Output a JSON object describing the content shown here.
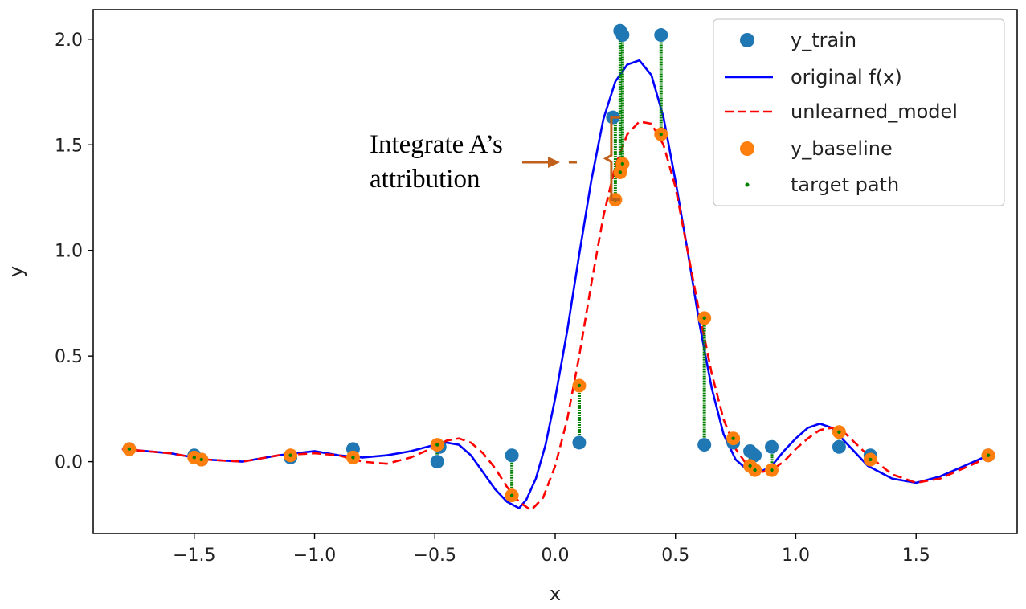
{
  "chart_data": {
    "type": "scatter",
    "title": "",
    "xlabel": "x",
    "ylabel": "y",
    "xlim": [
      -1.92,
      1.92
    ],
    "ylim": [
      -0.34,
      2.14
    ],
    "xticks": [
      -1.5,
      -1.0,
      -0.5,
      0.0,
      0.5,
      1.0,
      1.5
    ],
    "xtick_labels": [
      "−1.5",
      "−1.0",
      "−0.5",
      "0.0",
      "0.5",
      "1.0",
      "1.5"
    ],
    "yticks": [
      0.0,
      0.5,
      1.0,
      1.5,
      2.0
    ],
    "ytick_labels": [
      "0.0",
      "0.5",
      "1.0",
      "1.5",
      "2.0"
    ],
    "grid": false,
    "legend_position": "top-right",
    "colors": {
      "y_train": "#1f77b4",
      "original": "#0000ff",
      "unlearned": "#ff0000",
      "y_baseline": "#ff7f0e",
      "target_path": "#008000",
      "annotation": "#c0601a"
    },
    "legend": [
      {
        "label": "y_train",
        "marker": "circle",
        "color": "#1f77b4"
      },
      {
        "label": "original f(x)",
        "marker": "solid-line",
        "color": "#0000ff"
      },
      {
        "label": "unlearned_model",
        "marker": "dashed-line",
        "color": "#ff0000"
      },
      {
        "label": "y_baseline",
        "marker": "circle",
        "color": "#ff7f0e"
      },
      {
        "label": "target path",
        "marker": "small-dot",
        "color": "#008000"
      }
    ],
    "series": [
      {
        "name": "original f(x)",
        "style": "solid",
        "x": [
          -1.8,
          -1.6,
          -1.45,
          -1.3,
          -1.15,
          -1.0,
          -0.9,
          -0.8,
          -0.7,
          -0.6,
          -0.5,
          -0.45,
          -0.4,
          -0.35,
          -0.3,
          -0.25,
          -0.2,
          -0.15,
          -0.12,
          -0.08,
          -0.04,
          0.0,
          0.05,
          0.1,
          0.15,
          0.2,
          0.25,
          0.3,
          0.35,
          0.4,
          0.45,
          0.5,
          0.55,
          0.6,
          0.65,
          0.7,
          0.75,
          0.8,
          0.85,
          0.9,
          0.95,
          1.0,
          1.05,
          1.1,
          1.15,
          1.2,
          1.3,
          1.4,
          1.5,
          1.6,
          1.7,
          1.8
        ],
        "y": [
          0.06,
          0.04,
          0.01,
          0.0,
          0.03,
          0.05,
          0.03,
          0.02,
          0.03,
          0.05,
          0.08,
          0.09,
          0.08,
          0.03,
          -0.05,
          -0.13,
          -0.19,
          -0.22,
          -0.18,
          -0.08,
          0.08,
          0.3,
          0.62,
          0.98,
          1.33,
          1.62,
          1.8,
          1.88,
          1.9,
          1.83,
          1.63,
          1.33,
          1.0,
          0.65,
          0.35,
          0.13,
          0.01,
          -0.04,
          -0.05,
          -0.02,
          0.05,
          0.11,
          0.16,
          0.18,
          0.16,
          0.1,
          -0.02,
          -0.08,
          -0.1,
          -0.07,
          -0.02,
          0.03
        ]
      },
      {
        "name": "unlearned_model",
        "style": "dashed",
        "x": [
          -1.8,
          -1.6,
          -1.45,
          -1.3,
          -1.15,
          -1.0,
          -0.9,
          -0.8,
          -0.7,
          -0.6,
          -0.5,
          -0.45,
          -0.4,
          -0.35,
          -0.3,
          -0.25,
          -0.2,
          -0.15,
          -0.1,
          -0.05,
          0.0,
          0.05,
          0.1,
          0.15,
          0.2,
          0.25,
          0.3,
          0.35,
          0.4,
          0.45,
          0.5,
          0.55,
          0.6,
          0.65,
          0.7,
          0.75,
          0.8,
          0.85,
          0.9,
          0.95,
          1.0,
          1.05,
          1.1,
          1.15,
          1.2,
          1.3,
          1.4,
          1.5,
          1.6,
          1.7,
          1.8
        ],
        "y": [
          0.06,
          0.04,
          0.01,
          0.0,
          0.03,
          0.04,
          0.03,
          0.0,
          -0.01,
          0.02,
          0.07,
          0.1,
          0.11,
          0.09,
          0.04,
          -0.03,
          -0.12,
          -0.19,
          -0.23,
          -0.17,
          -0.02,
          0.2,
          0.5,
          0.84,
          1.16,
          1.4,
          1.55,
          1.61,
          1.6,
          1.5,
          1.3,
          1.0,
          0.7,
          0.42,
          0.2,
          0.06,
          -0.02,
          -0.05,
          -0.04,
          0.0,
          0.06,
          0.11,
          0.15,
          0.16,
          0.14,
          0.03,
          -0.06,
          -0.1,
          -0.08,
          -0.03,
          0.02
        ]
      }
    ],
    "y_train": {
      "x": [
        -1.77,
        -1.5,
        -1.47,
        -1.1,
        -0.84,
        -0.49,
        -0.48,
        -0.18,
        0.1,
        0.24,
        0.27,
        0.28,
        0.44,
        0.62,
        0.74,
        0.81,
        0.83,
        0.9,
        1.18,
        1.31,
        1.8
      ],
      "y": [
        0.06,
        0.03,
        0.01,
        0.02,
        0.06,
        0.0,
        0.07,
        0.03,
        0.09,
        1.63,
        2.04,
        2.02,
        2.02,
        0.08,
        0.09,
        0.05,
        0.03,
        0.07,
        0.07,
        0.03,
        0.03
      ]
    },
    "y_baseline": {
      "x": [
        -1.77,
        -1.5,
        -1.47,
        -1.1,
        -0.84,
        -0.49,
        -0.18,
        0.1,
        0.25,
        0.27,
        0.28,
        0.44,
        0.62,
        0.74,
        0.81,
        0.83,
        0.9,
        1.18,
        1.31,
        1.8
      ],
      "y": [
        0.06,
        0.02,
        0.01,
        0.03,
        0.02,
        0.08,
        -0.16,
        0.36,
        1.24,
        1.37,
        1.41,
        1.55,
        0.68,
        0.11,
        -0.02,
        -0.04,
        -0.04,
        0.14,
        0.01,
        0.03
      ]
    },
    "target_path": {
      "x": [
        -1.77,
        -1.5,
        -1.47,
        -1.1,
        -0.84,
        -0.49,
        -0.18,
        0.1,
        0.25,
        0.27,
        0.28,
        0.44,
        0.62,
        0.74,
        0.81,
        0.83,
        0.9,
        1.18,
        1.31,
        1.8
      ],
      "y_start": [
        0.06,
        0.03,
        0.01,
        0.02,
        0.06,
        0.0,
        0.03,
        0.09,
        1.63,
        2.04,
        2.02,
        2.02,
        0.08,
        0.09,
        0.05,
        0.03,
        0.07,
        0.07,
        0.03,
        0.03
      ],
      "y_end": [
        0.06,
        0.02,
        0.01,
        0.03,
        0.02,
        0.08,
        -0.16,
        0.36,
        1.24,
        1.37,
        1.41,
        1.55,
        0.68,
        0.11,
        -0.02,
        -0.04,
        -0.04,
        0.14,
        0.01,
        0.03
      ]
    },
    "annotation": {
      "lines": [
        "Integrate A’s",
        "attribution"
      ],
      "bracket_x": 0.2,
      "bracket_y_range": [
        1.24,
        1.63
      ]
    }
  }
}
